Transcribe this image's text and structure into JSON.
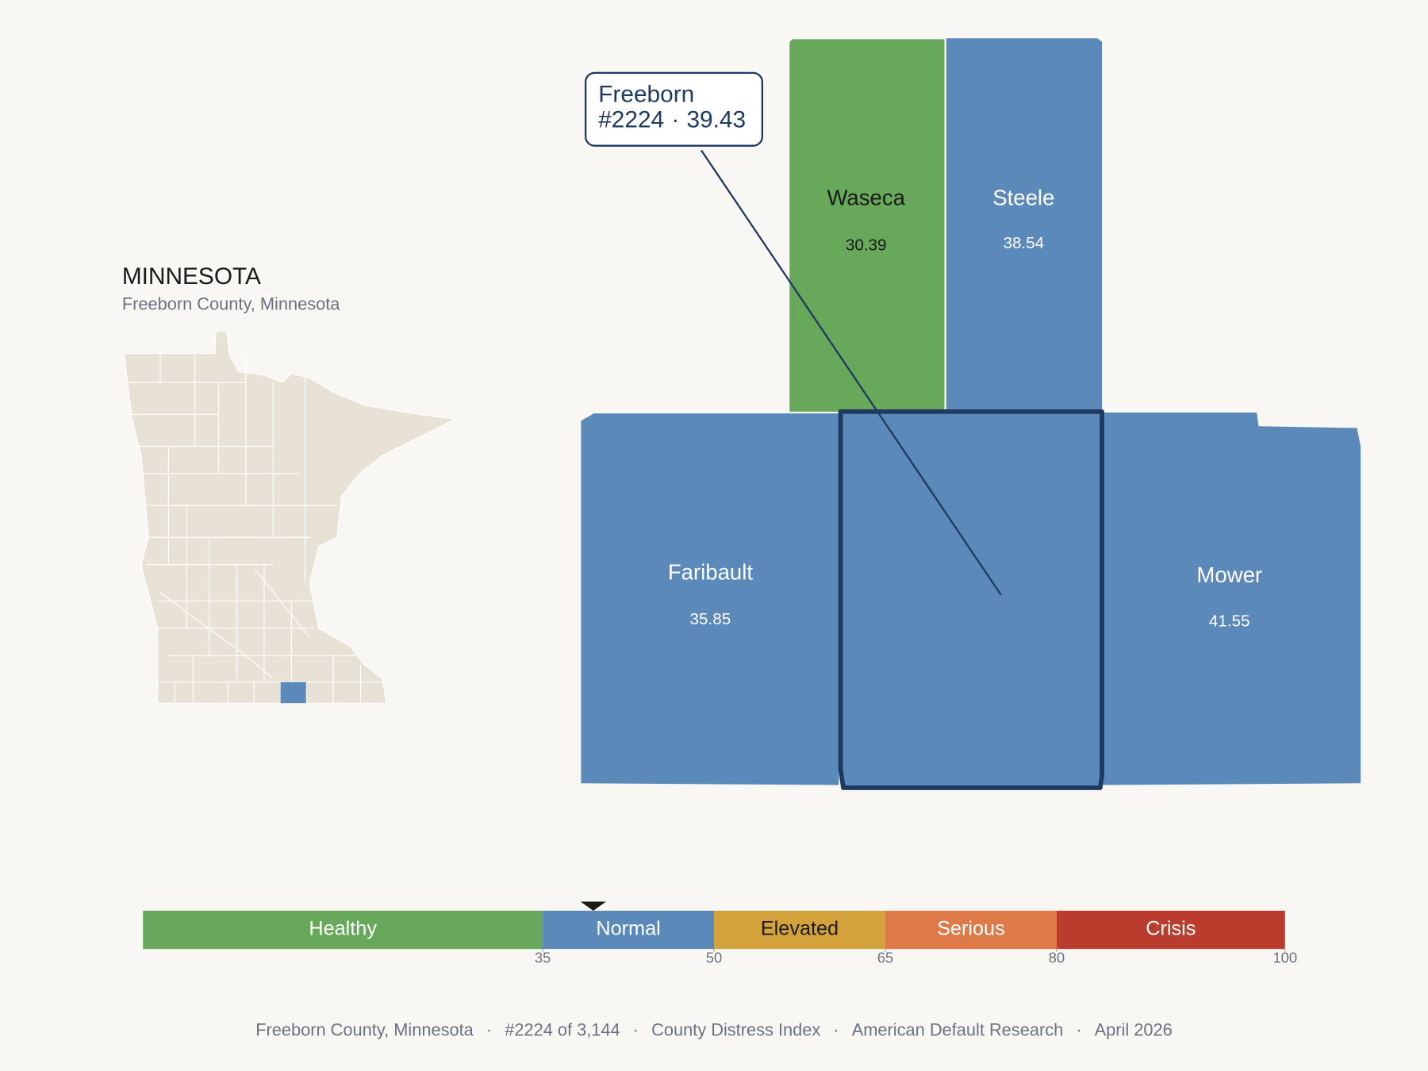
{
  "state_panel": {
    "title": "MINNESOTA",
    "subtitle": "Freeborn County, Minnesota",
    "base_color": "#e8e2d6",
    "highlight_color": "#5b89b9"
  },
  "counties": [
    {
      "name": "Waseca",
      "value": 30.39,
      "color": "#67a85a"
    },
    {
      "name": "Steele",
      "value": 38.54,
      "color": "#5b89b9"
    },
    {
      "name": "Faribault",
      "value": 35.85,
      "color": "#5b89b9"
    },
    {
      "name": "Mower",
      "value": 41.55,
      "color": "#5b89b9"
    },
    {
      "name": "Freeborn",
      "value": 39.43,
      "color": "#5b89b9"
    }
  ],
  "callout": {
    "rank": "#2224",
    "separator": "·"
  },
  "scale": {
    "lim": [
      0,
      100
    ],
    "ticks": [
      35,
      50,
      65,
      80,
      100
    ],
    "bands": [
      {
        "label": "Healthy",
        "color": "#67a85a"
      },
      {
        "label": "Normal",
        "color": "#5b89b9"
      },
      {
        "label": "Elevated",
        "color": "#d4a23a"
      },
      {
        "label": "Serious",
        "color": "#dd7a48"
      },
      {
        "label": "Crisis",
        "color": "#b93c2c"
      }
    ]
  },
  "footer": {
    "parts": [
      "Freeborn County, Minnesota",
      "#2224 of 3,144",
      "County Distress Index",
      "American Default Research",
      "April 2026"
    ],
    "separator": "·"
  }
}
